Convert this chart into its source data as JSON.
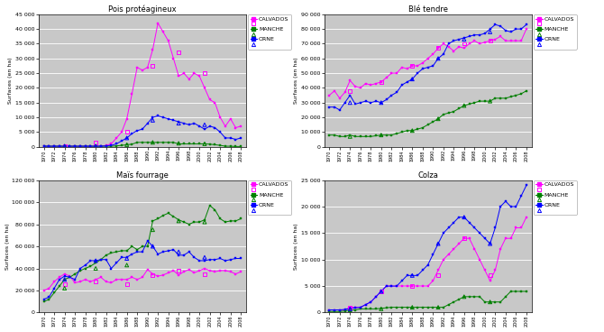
{
  "years": [
    1970,
    1971,
    1972,
    1973,
    1974,
    1975,
    1976,
    1977,
    1978,
    1979,
    1980,
    1981,
    1982,
    1983,
    1984,
    1985,
    1986,
    1987,
    1988,
    1989,
    1990,
    1991,
    1992,
    1993,
    1994,
    1995,
    1996,
    1997,
    1998,
    1999,
    2000,
    2001,
    2002,
    2003,
    2004,
    2005,
    2006,
    2007,
    2008
  ],
  "pois": {
    "title": "Pois protéagineux",
    "ylabel": "Surfaces (en ha)",
    "ylim": [
      0,
      45000
    ],
    "yticks": [
      0,
      5000,
      10000,
      15000,
      20000,
      25000,
      30000,
      35000,
      40000,
      45000
    ],
    "CALVADOS_saa": [
      200,
      200,
      200,
      200,
      200,
      200,
      200,
      200,
      200,
      200,
      200,
      200,
      500,
      1000,
      3000,
      5000,
      9500,
      18000,
      27000,
      26000,
      27000,
      33000,
      42000,
      39000,
      36000,
      30000,
      24000,
      25000,
      23000,
      25000,
      24000,
      20000,
      16000,
      15000,
      10000,
      7000,
      9500,
      6500,
      7000
    ],
    "CALVADOS_rga": [
      null,
      null,
      null,
      null,
      200,
      null,
      null,
      null,
      null,
      null,
      1500,
      null,
      null,
      null,
      null,
      null,
      5000,
      null,
      null,
      null,
      null,
      27500,
      null,
      null,
      null,
      null,
      32000,
      null,
      null,
      null,
      null,
      25000,
      null,
      null,
      null,
      null,
      null,
      null,
      null
    ],
    "MANCHE_saa": [
      200,
      200,
      200,
      200,
      200,
      200,
      200,
      200,
      200,
      200,
      200,
      200,
      200,
      200,
      300,
      500,
      700,
      900,
      1500,
      1500,
      1500,
      1500,
      1500,
      1500,
      1500,
      1500,
      1000,
      1000,
      1000,
      1000,
      1000,
      1000,
      900,
      700,
      500,
      200,
      200,
      100,
      100
    ],
    "MANCHE_rga": [
      null,
      null,
      null,
      null,
      200,
      null,
      null,
      null,
      null,
      null,
      200,
      null,
      null,
      null,
      null,
      null,
      700,
      null,
      null,
      null,
      null,
      1500,
      null,
      null,
      null,
      null,
      1200,
      null,
      null,
      null,
      null,
      1000,
      null,
      null,
      null,
      null,
      null,
      null,
      null
    ],
    "ORNE_saa": [
      200,
      200,
      200,
      200,
      200,
      200,
      200,
      200,
      200,
      200,
      200,
      200,
      300,
      500,
      1000,
      2000,
      3000,
      4500,
      5500,
      6000,
      8000,
      10000,
      10500,
      10000,
      9500,
      9000,
      8500,
      8000,
      7500,
      8000,
      7000,
      6000,
      7000,
      6500,
      5000,
      3000,
      3000,
      2500,
      3000
    ],
    "ORNE_rga": [
      null,
      null,
      null,
      null,
      200,
      null,
      null,
      null,
      null,
      null,
      200,
      null,
      null,
      null,
      null,
      null,
      3000,
      null,
      null,
      null,
      null,
      9000,
      null,
      null,
      null,
      null,
      8000,
      null,
      null,
      null,
      null,
      7500,
      null,
      null,
      null,
      null,
      null,
      null,
      null
    ]
  },
  "ble": {
    "title": "Blé tendre",
    "ylabel": "Surfaces (en ha)",
    "ylim": [
      0,
      90000
    ],
    "yticks": [
      0,
      10000,
      20000,
      30000,
      40000,
      50000,
      60000,
      70000,
      80000,
      90000
    ],
    "CALVADOS_saa": [
      35000,
      38000,
      33000,
      37000,
      45000,
      41000,
      40000,
      43000,
      42000,
      43000,
      44000,
      47000,
      50000,
      50000,
      54000,
      53000,
      55000,
      55000,
      57000,
      60000,
      63000,
      67000,
      70000,
      68000,
      65000,
      68000,
      67000,
      70000,
      72000,
      70000,
      71000,
      72000,
      73000,
      75000,
      72000,
      72000,
      72000,
      72000,
      80000
    ],
    "CALVADOS_rga": [
      null,
      null,
      null,
      null,
      38000,
      null,
      null,
      null,
      null,
      null,
      44000,
      null,
      null,
      null,
      null,
      null,
      55000,
      null,
      null,
      null,
      null,
      67000,
      null,
      null,
      null,
      null,
      70000,
      null,
      null,
      null,
      null,
      72000,
      null,
      null,
      null,
      null,
      null,
      null,
      null
    ],
    "MANCHE_saa": [
      8000,
      8000,
      7000,
      7000,
      8000,
      7000,
      7000,
      7000,
      7000,
      7500,
      8000,
      8000,
      8000,
      9000,
      10000,
      11000,
      11000,
      12000,
      13000,
      15000,
      17000,
      19000,
      22000,
      23000,
      24000,
      26000,
      28000,
      29000,
      30000,
      31000,
      31000,
      31000,
      33000,
      33000,
      33000,
      34000,
      35000,
      36000,
      38000
    ],
    "MANCHE_rga": [
      null,
      null,
      null,
      null,
      7000,
      null,
      null,
      null,
      null,
      null,
      8000,
      null,
      null,
      null,
      null,
      null,
      11000,
      null,
      null,
      null,
      null,
      19000,
      null,
      null,
      null,
      null,
      28000,
      null,
      null,
      null,
      null,
      31000,
      null,
      null,
      null,
      null,
      null,
      null,
      null
    ],
    "ORNE_saa": [
      27000,
      27000,
      25000,
      30000,
      35000,
      29000,
      30000,
      31000,
      30000,
      31000,
      30000,
      32000,
      35000,
      37000,
      42000,
      44000,
      46000,
      50000,
      53000,
      54000,
      55000,
      60000,
      63000,
      70000,
      72000,
      73000,
      74000,
      75000,
      76000,
      76000,
      77000,
      80000,
      83000,
      82000,
      79000,
      78000,
      80000,
      80000,
      83000
    ],
    "ORNE_rga": [
      null,
      null,
      null,
      null,
      30000,
      null,
      null,
      null,
      null,
      null,
      30000,
      null,
      null,
      null,
      null,
      null,
      46000,
      null,
      null,
      null,
      null,
      60000,
      null,
      null,
      null,
      null,
      73000,
      null,
      null,
      null,
      null,
      78000,
      null,
      null,
      null,
      null,
      null,
      null,
      null
    ]
  },
  "mais": {
    "title": "Maïs fourrage",
    "ylabel": "Surfaces (en ha)",
    "ylim": [
      0,
      120000
    ],
    "yticks": [
      0,
      20000,
      40000,
      60000,
      80000,
      100000,
      120000
    ],
    "CALVADOS_saa": [
      20000,
      22000,
      28000,
      32000,
      35000,
      33000,
      27000,
      28000,
      30000,
      28000,
      30000,
      32000,
      28000,
      27000,
      30000,
      30000,
      30000,
      32000,
      30000,
      32000,
      39000,
      35000,
      33000,
      34000,
      36000,
      38000,
      34000,
      37000,
      39000,
      36000,
      38000,
      40000,
      38000,
      37000,
      38000,
      38000,
      37000,
      35000,
      37000
    ],
    "CALVADOS_rga": [
      null,
      null,
      null,
      null,
      26000,
      null,
      null,
      null,
      null,
      null,
      28000,
      null,
      null,
      null,
      null,
      null,
      26000,
      null,
      null,
      null,
      null,
      34000,
      null,
      null,
      null,
      null,
      38000,
      null,
      null,
      null,
      null,
      35000,
      null,
      null,
      null,
      null,
      null,
      null,
      null
    ],
    "MANCHE_saa": [
      10000,
      12000,
      18000,
      24000,
      30000,
      32000,
      35000,
      38000,
      40000,
      42000,
      45000,
      48000,
      52000,
      54000,
      55000,
      56000,
      56000,
      60000,
      57000,
      60000,
      60000,
      83000,
      85000,
      88000,
      90000,
      87000,
      84000,
      82000,
      80000,
      82000,
      82000,
      84000,
      97000,
      93000,
      85000,
      82000,
      83000,
      83000,
      85000
    ],
    "MANCHE_rga": [
      null,
      null,
      null,
      null,
      22000,
      null,
      null,
      null,
      null,
      null,
      40000,
      null,
      null,
      null,
      null,
      null,
      43000,
      null,
      null,
      null,
      null,
      75000,
      null,
      null,
      null,
      null,
      83000,
      null,
      null,
      null,
      null,
      82000,
      null,
      null,
      null,
      null,
      null,
      null,
      null
    ],
    "ORNE_saa": [
      12000,
      14000,
      22000,
      30000,
      33000,
      32000,
      30000,
      40000,
      43000,
      47000,
      47000,
      48000,
      48000,
      40000,
      45000,
      50000,
      50000,
      53000,
      55000,
      55000,
      65000,
      60000,
      53000,
      55000,
      56000,
      57000,
      52000,
      52000,
      55000,
      50000,
      47000,
      47000,
      48000,
      48000,
      49000,
      47000,
      48000,
      49000,
      49000
    ],
    "ORNE_rga": [
      null,
      null,
      null,
      null,
      30000,
      null,
      null,
      null,
      null,
      null,
      47000,
      null,
      null,
      null,
      null,
      null,
      49000,
      null,
      null,
      null,
      null,
      60000,
      null,
      null,
      null,
      null,
      55000,
      null,
      null,
      null,
      null,
      50000,
      null,
      null,
      null,
      null,
      null,
      null,
      null
    ]
  },
  "colza": {
    "title": "Colza",
    "ylabel": "Surfaces (en ha)",
    "ylim": [
      0,
      25000
    ],
    "yticks": [
      0,
      5000,
      10000,
      15000,
      20000,
      25000
    ],
    "CALVADOS_saa": [
      500,
      500,
      500,
      500,
      1000,
      1000,
      1000,
      1500,
      2000,
      3000,
      4000,
      5000,
      5000,
      5000,
      5000,
      5000,
      5000,
      5000,
      5000,
      5000,
      6000,
      8000,
      10000,
      11000,
      12000,
      13000,
      14000,
      14000,
      12000,
      10000,
      8000,
      6000,
      8000,
      12000,
      14000,
      14000,
      16000,
      16000,
      18000
    ],
    "CALVADOS_rga": [
      null,
      null,
      null,
      null,
      1000,
      null,
      null,
      null,
      null,
      null,
      4000,
      null,
      null,
      null,
      null,
      null,
      5000,
      null,
      null,
      null,
      null,
      7000,
      null,
      null,
      null,
      null,
      14000,
      null,
      null,
      null,
      null,
      7000,
      null,
      null,
      null,
      null,
      null,
      null,
      null
    ],
    "MANCHE_saa": [
      200,
      200,
      200,
      300,
      500,
      500,
      700,
      700,
      700,
      700,
      800,
      900,
      1000,
      1000,
      1000,
      1000,
      1000,
      1000,
      1000,
      1000,
      1000,
      1000,
      1000,
      1500,
      2000,
      2500,
      3000,
      3000,
      3000,
      3000,
      2000,
      2000,
      2000,
      2000,
      3000,
      4000,
      4000,
      4000,
      4000
    ],
    "MANCHE_rga": [
      null,
      null,
      null,
      null,
      500,
      null,
      null,
      null,
      null,
      null,
      700,
      null,
      null,
      null,
      null,
      null,
      1000,
      null,
      null,
      null,
      null,
      1000,
      null,
      null,
      null,
      null,
      3000,
      null,
      null,
      null,
      null,
      2000,
      null,
      null,
      null,
      null,
      null,
      null,
      null
    ],
    "ORNE_saa": [
      500,
      500,
      500,
      600,
      800,
      900,
      1000,
      1500,
      2000,
      3000,
      4000,
      5000,
      5000,
      5000,
      6000,
      7000,
      7000,
      7000,
      8000,
      9000,
      11000,
      13000,
      15000,
      16000,
      17000,
      18000,
      18000,
      17000,
      16000,
      15000,
      14000,
      13000,
      16000,
      20000,
      21000,
      20000,
      20000,
      22000,
      24000
    ],
    "ORNE_rga": [
      null,
      null,
      null,
      null,
      700,
      null,
      null,
      null,
      null,
      null,
      4000,
      null,
      null,
      null,
      null,
      null,
      7000,
      null,
      null,
      null,
      null,
      13000,
      null,
      null,
      null,
      null,
      18000,
      null,
      null,
      null,
      null,
      13000,
      null,
      null,
      null,
      null,
      null,
      null,
      null
    ]
  },
  "colors": {
    "CALVADOS": "#ff00ff",
    "MANCHE": "#008000",
    "ORNE": "#0000ff"
  },
  "bg_color": "#c8c8c8",
  "grid_color": "#ffffff",
  "legend_bg": "#ffffff",
  "departments": [
    "CALVADOS",
    "MANCHE",
    "ORNE"
  ],
  "saa_markers": {
    "CALVADOS": "s",
    "MANCHE": "s",
    "ORNE": "s"
  },
  "rga_markers": {
    "CALVADOS": "s",
    "MANCHE": "^",
    "ORNE": "^"
  }
}
